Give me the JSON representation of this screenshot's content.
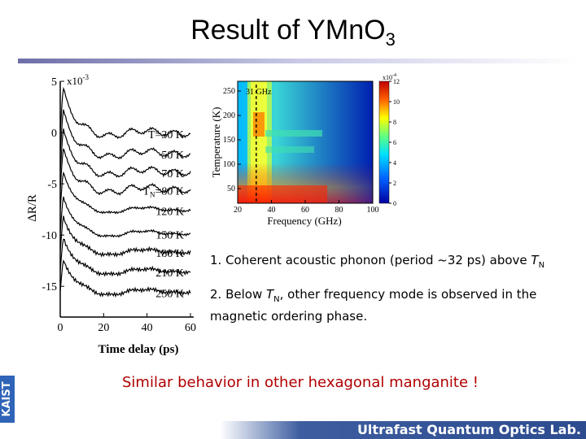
{
  "slide": {
    "title_main": "Result of YMnO",
    "title_sub": "3",
    "note1_text": "1. Coherent acoustic phonon (period ~32 ps) above ",
    "note1_tn": "T",
    "note1_tn_sub": "N",
    "note2_text_a": "2. Below ",
    "note2_tn": "T",
    "note2_tn_sub": "N",
    "note2_text_b": ", other frequency mode is observed in the magnetic ordering phase.",
    "similar": "Similar behavior in other hexagonal manganite !",
    "side_logo": "KAIST",
    "footer_lab": "Ultrafast Quantum Optics Lab.",
    "colors": {
      "similar_text": "#b00000",
      "footer_bar": "#2d4c90",
      "logo_bar": "#2f64b8"
    }
  },
  "chart_data": [
    {
      "type": "line",
      "xlabel": "Time delay (ps)",
      "ylabel": "ΔR/R",
      "y_multiplier": "x10",
      "y_multiplier_exp": "-3",
      "xlim": [
        0,
        60
      ],
      "ylim": [
        -18,
        5
      ],
      "x_ticks": [
        0,
        20,
        40,
        60
      ],
      "y_ticks": [
        5,
        0,
        -5,
        -10,
        -15
      ],
      "series": [
        {
          "name": "T=30 K",
          "offset": 0.0
        },
        {
          "name": "50 K",
          "offset": -2.0
        },
        {
          "name": "70 K",
          "offset": -3.8
        },
        {
          "name": "TN=80 K",
          "offset": -5.5
        },
        {
          "name": "120 K",
          "offset": -7.5
        },
        {
          "name": "150 K",
          "offset": -9.8
        },
        {
          "name": "180 K",
          "offset": -11.6
        },
        {
          "name": "210 K",
          "offset": -13.5
        },
        {
          "name": "250 K",
          "offset": -15.5
        }
      ],
      "series_labels": [
        "T=30 K",
        "50 K",
        "70 K",
        "TN=80 K",
        "120 K",
        "150 K",
        "180 K",
        "210 K",
        "250 K"
      ],
      "label_parts": {
        "tn_base": "T",
        "tn_sub": "N",
        "tn_rest": "=80 K"
      }
    },
    {
      "type": "heatmap",
      "xlabel": "Frequency (GHz)",
      "ylabel": "Temperature (K)",
      "xlim": [
        20,
        100
      ],
      "ylim": [
        20,
        270
      ],
      "x_ticks": [
        20,
        40,
        60,
        80,
        100
      ],
      "y_ticks": [
        50,
        100,
        150,
        200,
        250
      ],
      "annotation": "31 GHz",
      "marker_line_x": 31,
      "colorbar": {
        "range": [
          0,
          12
        ],
        "ticks": [
          0,
          2,
          4,
          6,
          8,
          10,
          12
        ],
        "multiplier": "x10",
        "multiplier_exp": "-4"
      }
    }
  ]
}
